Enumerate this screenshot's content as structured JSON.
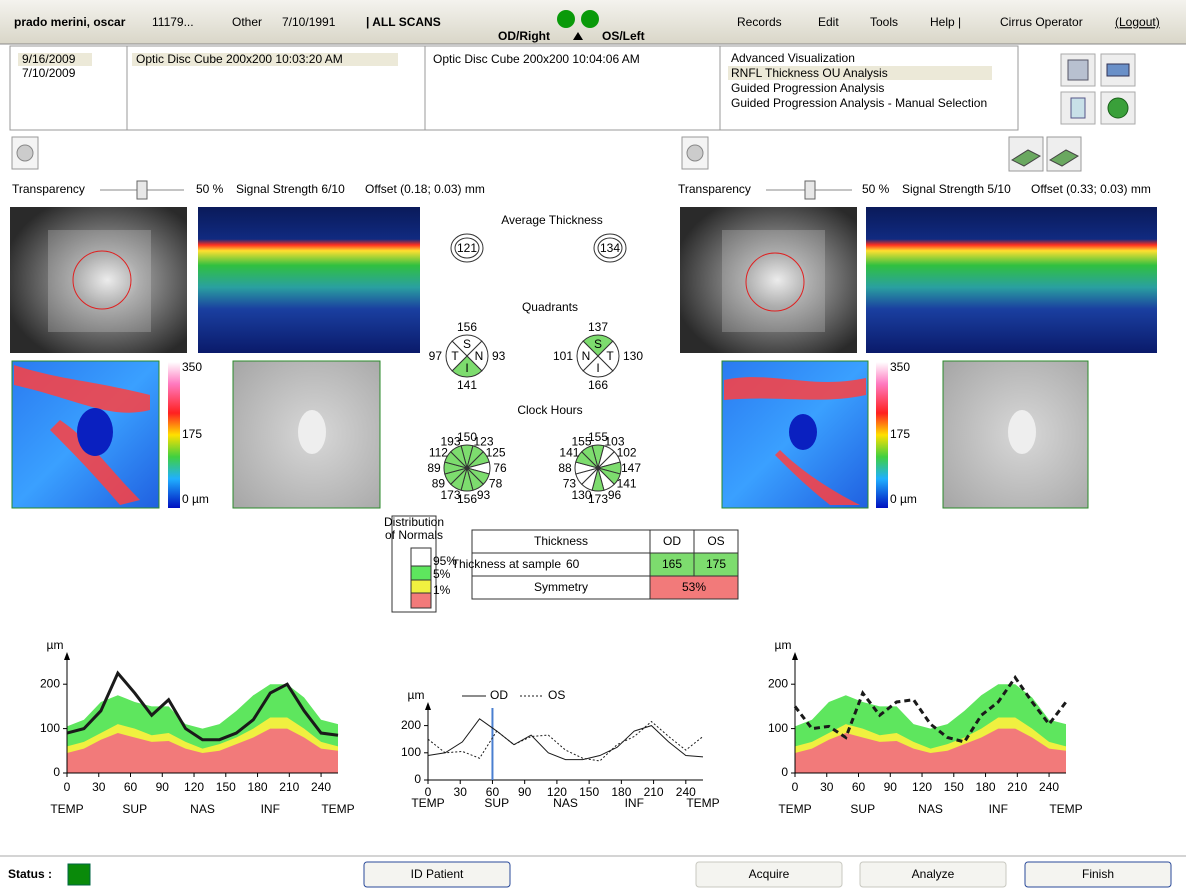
{
  "header": {
    "patient_name": "prado merini, oscar",
    "patient_id": "11179...",
    "gender": "Other",
    "dob": "7/10/1991",
    "mode": "| ALL SCANS",
    "od_label": "OD/Right",
    "os_label": "OS/Left",
    "menu": [
      "Records",
      "Edit",
      "Tools",
      "Help |"
    ],
    "operator": "Cirrus Operator",
    "logout": "(Logout)"
  },
  "scans": {
    "dates": [
      "9/16/2009",
      "7/10/2009"
    ],
    "od_scan": "Optic Disc Cube 200x200   10:03:20 AM",
    "os_scan": "Optic Disc Cube 200x200   10:04:06 AM",
    "analyses": [
      "Advanced Visualization",
      "RNFL Thickness OU Analysis",
      "Guided Progression Analysis",
      "Guided Progression Analysis - Manual Selection"
    ]
  },
  "od_panel": {
    "transparency_label": "Transparency",
    "transparency": "50 %",
    "signal": "Signal Strength 6/10",
    "offset": "Offset (0.18; 0.03) mm",
    "scale": [
      "350",
      "175",
      "0 µm"
    ]
  },
  "os_panel": {
    "transparency_label": "Transparency",
    "transparency": "50 %",
    "signal": "Signal Strength 5/10",
    "offset": "Offset (0.33; 0.03) mm",
    "scale": [
      "350",
      "175",
      "0 µm"
    ]
  },
  "center": {
    "avg_title": "Average Thickness",
    "avg": [
      121,
      134
    ],
    "quad_title": "Quadrants",
    "quadrants": [
      [
        {
          "letter": "S",
          "value": 156,
          "color": "#ffffff"
        },
        {
          "letter": "N",
          "value": 93,
          "color": "#ffffff"
        },
        {
          "letter": "I",
          "value": 141,
          "color": "#7ddc6e"
        },
        {
          "letter": "T",
          "value": 97,
          "color": "#ffffff"
        }
      ],
      [
        {
          "letter": "S",
          "value": 137,
          "color": "#7ddc6e"
        },
        {
          "letter": "T",
          "value": 130,
          "color": "#ffffff"
        },
        {
          "letter": "I",
          "value": 166,
          "color": "#ffffff"
        },
        {
          "letter": "N",
          "value": 101,
          "color": "#ffffff"
        }
      ]
    ],
    "clock_title": "Clock Hours",
    "clock": [
      {
        "values": [
          150,
          123,
          125,
          76,
          78,
          93,
          156,
          173,
          89,
          89,
          112,
          193
        ],
        "colors": [
          "#7ddc6e",
          "#7ddc6e",
          "#7ddc6e",
          "#ffffff",
          "#7ddc6e",
          "#7ddc6e",
          "#7ddc6e",
          "#7ddc6e",
          "#7ddc6e",
          "#7ddc6e",
          "#7ddc6e",
          "#7ddc6e"
        ]
      },
      {
        "values": [
          155,
          103,
          102,
          147,
          141,
          96,
          173,
          130,
          73,
          88,
          141,
          155
        ],
        "colors": [
          "#7ddc6e",
          "#ffffff",
          "#ffffff",
          "#7ddc6e",
          "#7ddc6e",
          "#ffffff",
          "#7ddc6e",
          "#ffffff",
          "#ffffff",
          "#ffffff",
          "#7ddc6e",
          "#7ddc6e"
        ]
      }
    ]
  },
  "legend": {
    "title": [
      "Distribution",
      "of Normals"
    ],
    "colors": [
      "#ffffff",
      "#5ee65e",
      "#f0f040",
      "#f27a7a"
    ],
    "labels": [
      "95%",
      "5%",
      "1%"
    ]
  },
  "table": {
    "header": [
      "Thickness",
      "OD",
      "OS"
    ],
    "sample_label": "Thickness at sample",
    "sample": 60,
    "sample_values": [
      "165",
      "175"
    ],
    "symmetry_label": "Symmetry",
    "symmetry": "53%"
  },
  "tsnit_od": {
    "y_label": "µm",
    "x": [
      0,
      16,
      32,
      48,
      64,
      80,
      96,
      112,
      128,
      144,
      160,
      176,
      192,
      208,
      224,
      240,
      256
    ],
    "xlim": [
      0,
      256
    ],
    "ylim": [
      0,
      250
    ],
    "xticks": [
      0,
      30,
      60,
      90,
      120,
      150,
      180,
      210,
      240
    ],
    "yticks": [
      0,
      100,
      200
    ],
    "region_labels": [
      "TEMP",
      "SUP",
      "NAS",
      "INF",
      "TEMP"
    ],
    "bands": [
      {
        "color": "#5ee65e",
        "values": [
          105,
          120,
          160,
          175,
          160,
          150,
          150,
          110,
          100,
          110,
          140,
          175,
          200,
          200,
          170,
          120,
          110
        ]
      },
      {
        "color": "#f0f040",
        "values": [
          60,
          70,
          90,
          110,
          100,
          85,
          90,
          70,
          55,
          65,
          80,
          100,
          125,
          125,
          100,
          70,
          60
        ]
      },
      {
        "color": "#f27a7a",
        "values": [
          45,
          55,
          75,
          90,
          80,
          70,
          72,
          55,
          45,
          50,
          65,
          80,
          100,
          100,
          80,
          55,
          50
        ]
      }
    ],
    "series": [
      {
        "color": "#1a1a1a",
        "dash": false,
        "values": [
          90,
          100,
          140,
          225,
          180,
          130,
          165,
          100,
          75,
          75,
          90,
          120,
          180,
          200,
          140,
          90,
          85
        ]
      }
    ]
  },
  "tsnit_ou": {
    "y_label": "µm",
    "x": [
      0,
      16,
      32,
      48,
      64,
      80,
      96,
      112,
      128,
      144,
      160,
      176,
      192,
      208,
      224,
      240,
      256
    ],
    "xlim": [
      0,
      256
    ],
    "ylim": [
      0,
      250
    ],
    "xticks": [
      0,
      30,
      60,
      90,
      120,
      150,
      180,
      210,
      240
    ],
    "yticks": [
      0,
      100,
      200
    ],
    "region_labels": [
      "TEMP",
      "SUP",
      "NAS",
      "INF",
      "TEMP"
    ],
    "marker_color": "#4a7fd0",
    "series": [
      {
        "name": "OD",
        "color": "#1a1a1a",
        "dash": false,
        "values": [
          90,
          100,
          140,
          225,
          180,
          130,
          165,
          100,
          75,
          75,
          90,
          120,
          180,
          200,
          140,
          90,
          85
        ]
      },
      {
        "name": "OS",
        "color": "#1a1a1a",
        "dash": true,
        "values": [
          150,
          100,
          105,
          80,
          180,
          130,
          160,
          165,
          110,
          80,
          70,
          130,
          160,
          215,
          160,
          110,
          160
        ]
      }
    ]
  },
  "tsnit_os": {
    "y_label": "µm",
    "x": [
      0,
      16,
      32,
      48,
      64,
      80,
      96,
      112,
      128,
      144,
      160,
      176,
      192,
      208,
      224,
      240,
      256
    ],
    "xlim": [
      0,
      256
    ],
    "ylim": [
      0,
      250
    ],
    "xticks": [
      0,
      30,
      60,
      90,
      120,
      150,
      180,
      210,
      240
    ],
    "yticks": [
      0,
      100,
      200
    ],
    "region_labels": [
      "TEMP",
      "SUP",
      "NAS",
      "INF",
      "TEMP"
    ],
    "bands": [
      {
        "color": "#5ee65e",
        "values": [
          105,
          120,
          160,
          175,
          160,
          150,
          150,
          110,
          100,
          110,
          140,
          175,
          200,
          200,
          170,
          120,
          110
        ]
      },
      {
        "color": "#f0f040",
        "values": [
          60,
          70,
          90,
          110,
          100,
          85,
          90,
          70,
          55,
          65,
          80,
          100,
          125,
          125,
          100,
          70,
          60
        ]
      },
      {
        "color": "#f27a7a",
        "values": [
          45,
          55,
          75,
          90,
          80,
          70,
          72,
          55,
          45,
          50,
          65,
          80,
          100,
          100,
          80,
          55,
          50
        ]
      }
    ],
    "series": [
      {
        "color": "#1a1a1a",
        "dash": true,
        "values": [
          150,
          100,
          105,
          80,
          180,
          130,
          160,
          165,
          110,
          80,
          70,
          130,
          160,
          215,
          160,
          110,
          160
        ]
      }
    ]
  },
  "footer": {
    "status": "Status :",
    "buttons": [
      "ID Patient",
      "Acquire",
      "Analyze",
      "Finish"
    ]
  }
}
